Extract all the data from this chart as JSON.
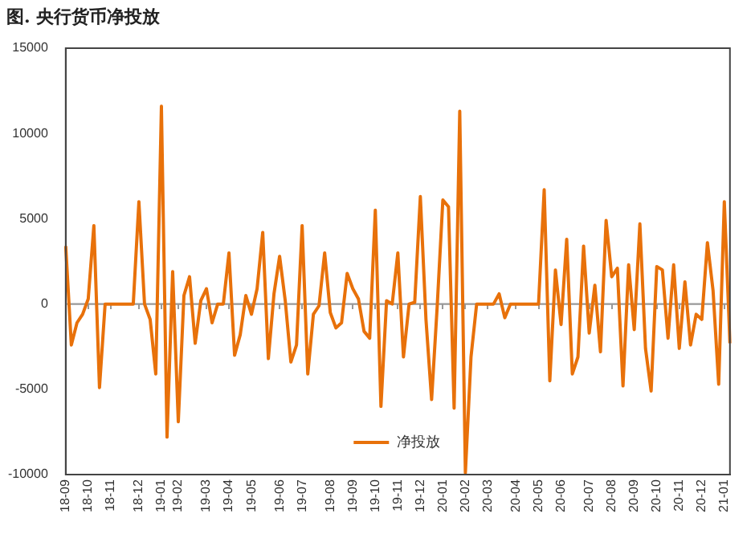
{
  "chart_data": {
    "type": "line",
    "title": "图. 央行货币净投放",
    "categories": [
      "18-09",
      null,
      null,
      null,
      "18-10",
      null,
      null,
      null,
      "18-11",
      null,
      null,
      null,
      null,
      "18-12",
      null,
      null,
      null,
      "19-01",
      null,
      null,
      "19-02",
      null,
      null,
      null,
      null,
      "19-03",
      null,
      null,
      null,
      "19-04",
      null,
      null,
      null,
      "19-05",
      null,
      null,
      null,
      null,
      "19-06",
      null,
      null,
      null,
      "19-07",
      null,
      null,
      null,
      null,
      "19-08",
      null,
      null,
      null,
      "19-09",
      null,
      null,
      null,
      "19-10",
      null,
      null,
      null,
      "19-11",
      null,
      null,
      null,
      "19-12",
      null,
      null,
      null,
      "20-01",
      null,
      null,
      null,
      "20-02",
      null,
      null,
      null,
      "20-03",
      null,
      null,
      null,
      null,
      "20-04",
      null,
      null,
      null,
      "20-05",
      null,
      null,
      null,
      "20-06",
      null,
      null,
      null,
      null,
      "20-07",
      null,
      null,
      null,
      "20-08",
      null,
      null,
      null,
      "20-09",
      null,
      null,
      null,
      "20-10",
      null,
      null,
      null,
      "20-11",
      null,
      null,
      null,
      "20-12",
      null,
      null,
      null,
      "21-01",
      null
    ],
    "series": [
      {
        "name": "净投放",
        "color": "#e8710a",
        "values": [
          3400,
          -2400,
          -1100,
          -600,
          300,
          4600,
          -4900,
          0,
          0,
          0,
          0,
          0,
          0,
          6000,
          0,
          -900,
          -4100,
          11600,
          -7800,
          1900,
          -6900,
          500,
          1600,
          -2300,
          200,
          900,
          -1100,
          0,
          0,
          3000,
          -3000,
          -1800,
          500,
          -600,
          900,
          4200,
          -3200,
          600,
          2800,
          200,
          -3400,
          -2400,
          4600,
          -4100,
          -600,
          -100,
          3000,
          -500,
          -1400,
          -1100,
          1800,
          900,
          300,
          -1600,
          -2000,
          5500,
          -6000,
          200,
          0,
          3000,
          -3100,
          0,
          100,
          6300,
          -900,
          -5600,
          -100,
          6100,
          5700,
          -6100,
          11300,
          -9900,
          -3100,
          0,
          0,
          0,
          0,
          600,
          -800,
          0,
          0,
          0,
          0,
          0,
          0,
          6700,
          -4500,
          2000,
          -1200,
          3800,
          -4100,
          -3100,
          3400,
          -1700,
          1100,
          -2800,
          4900,
          1600,
          2100,
          -4800,
          2300,
          -1500,
          4700,
          -2600,
          -5100,
          2200,
          2000,
          -2000,
          2300,
          -2600,
          1300,
          -2400,
          -600,
          -900,
          3600,
          800,
          -4700,
          6000,
          -2300
        ]
      }
    ],
    "ylim": [
      -10000,
      15000
    ],
    "yticks": [
      -10000,
      -5000,
      0,
      5000,
      10000,
      15000
    ],
    "ref_lines": [
      {
        "axis": "y",
        "value": 0,
        "color": "#999999"
      }
    ],
    "grid": false,
    "legend": "bottom",
    "marker": "none",
    "line_style": "solid"
  }
}
